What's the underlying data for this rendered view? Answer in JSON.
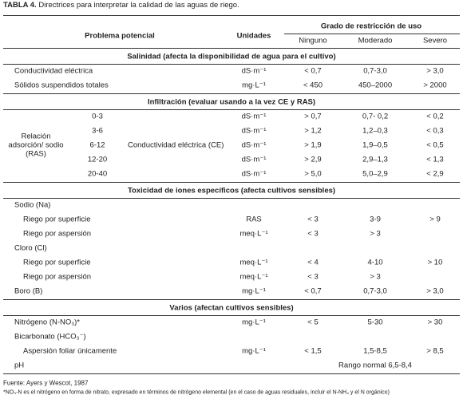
{
  "title": {
    "label": "TABLA 4.",
    "text": "Directrices para interpretar la calidad de las aguas de riego."
  },
  "header": {
    "problem": "Problema potencial",
    "units": "Unidades",
    "restriction": "Grado de restricción de uso",
    "levels": [
      "Ninguno",
      "Moderado",
      "Severo"
    ]
  },
  "sections": [
    {
      "title": "Salinidad (afecta la disponibilidad de agua para el cultivo)",
      "rows": [
        {
          "label": "Conductividad eléctrica",
          "units": "dS·m⁻¹",
          "values": [
            "< 0,7",
            "0,7-3,0",
            "> 3,0"
          ]
        },
        {
          "label": "Sólidos suspendidos totales",
          "units": "mg·L⁻¹",
          "values": [
            "< 450",
            "450–2000",
            "> 2000"
          ]
        }
      ]
    },
    {
      "title": "Infiltración (evaluar usando a la vez CE y RAS)",
      "group_label": "Relación adsorción/ sodio (RAS)",
      "parameter": "Conductividad eléctrica (CE)",
      "rows": [
        {
          "range": "0-3",
          "units": "dS·m⁻¹",
          "values": [
            "> 0,7",
            "0,7- 0,2",
            "< 0,2"
          ]
        },
        {
          "range": "3-6",
          "units": "dS·m⁻¹",
          "values": [
            "> 1,2",
            "1,2–0,3",
            "< 0,3"
          ]
        },
        {
          "range": "6-12",
          "units": "dS·m⁻¹",
          "values": [
            "> 1,9",
            "1,9–0,5",
            "< 0,5"
          ]
        },
        {
          "range": "12-20",
          "units": "dS·m⁻¹",
          "values": [
            "> 2,9",
            "2,9–1,3",
            "< 1,3"
          ]
        },
        {
          "range": "20-40",
          "units": "dS·m⁻¹",
          "values": [
            "> 5,0",
            "5,0–2,9",
            "< 2,9"
          ]
        }
      ]
    },
    {
      "title": "Toxicidad de iones específicos (afecta cultivos sensibles)",
      "rows": [
        {
          "label": "Sodio (Na)",
          "rows": [
            {
              "label": "Riego por superficie",
              "units": "RAS",
              "values": [
                "< 3",
                "3-9",
                "> 9"
              ]
            },
            {
              "label": "Riego por aspersión",
              "units": "meq·L⁻¹",
              "values": [
                "< 3",
                "> 3"
              ]
            }
          ]
        },
        {
          "label": "Cloro (Cl)",
          "rows": [
            {
              "label": "Riego por superficie",
              "units": "meq·L⁻¹",
              "values": [
                "< 4",
                "4-10",
                "> 10"
              ]
            },
            {
              "label": "Riego por aspersión",
              "units": "meq·L⁻¹",
              "values": [
                "< 3",
                "> 3"
              ]
            }
          ]
        },
        {
          "label": "Boro (B)",
          "units": "mg·L⁻¹",
          "values": [
            "< 0,7",
            "0,7-3,0",
            "> 3,0"
          ]
        }
      ]
    },
    {
      "title": "Varios (afectan cultivos sensibles)",
      "rows": [
        {
          "label": "Nitrógeno (N-NO₃)*",
          "units": "mg·L⁻¹",
          "values": [
            "< 5",
            "5-30",
            "> 30"
          ]
        },
        {
          "label": "Bicarbonato (HCO₃⁻)",
          "rows": [
            {
              "label": "Aspersión foliar únicamente",
              "units": "mg·L⁻¹",
              "values": [
                "< 1,5",
                "1,5-8,5",
                "> 8,5"
              ]
            }
          ]
        },
        {
          "label": "pH",
          "range": "Rango normal 6,5-8,4"
        }
      ]
    }
  ],
  "footnotes": [
    "Fuente: Ayers y Wescot, 1987",
    "*NO₃-N es el nitrógeno en forma de nitrato, expresado en términos de nitrógeno elemental (en el caso de aguas residuales, incluir el N-NH₄ y el N orgánico)"
  ]
}
